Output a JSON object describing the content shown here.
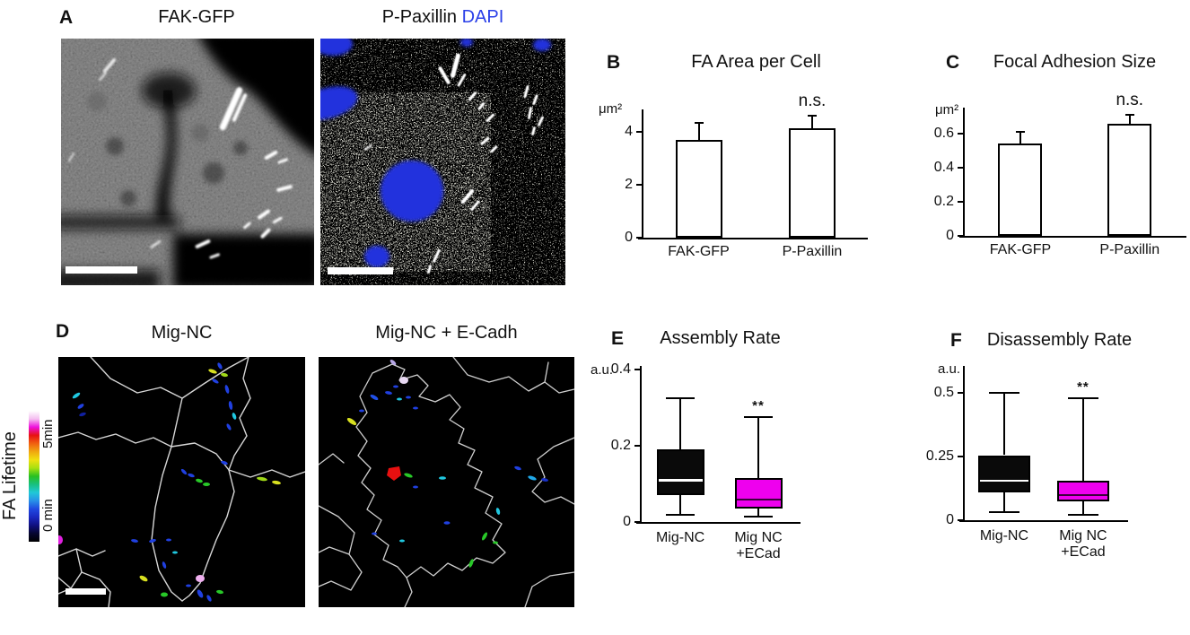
{
  "figure": {
    "background": "#ffffff",
    "dapi_blue": "#2a3fe8",
    "box_magenta": "#ee00ee"
  },
  "panels": {
    "a": {
      "label": "A",
      "image1_title": "FAK-GFP",
      "image2_title_main": "P-Paxillin",
      "image2_title_dapi": "DAPI"
    },
    "d": {
      "label": "D",
      "image1_title": "Mig-NC",
      "image2_title": "Mig-NC + E-Cadh",
      "colorbar": {
        "axis_label": "FA Lifetime",
        "top_label": "5min",
        "bottom_label": "0 min",
        "gradient": [
          "#ffffff",
          "#f4bdf0",
          "#ee10dd",
          "#e81212",
          "#f06010",
          "#f0a810",
          "#f0e010",
          "#a8e010",
          "#28c020",
          "#18c080",
          "#20c8d8",
          "#2890e8",
          "#2048e0",
          "#1a28c0",
          "#101080",
          "#060630",
          "#000000"
        ]
      }
    }
  },
  "chart_data": [
    {
      "id": "B",
      "panel_label": "B",
      "type": "bar",
      "title": "FA Area per Cell",
      "ylabel": "μm²",
      "ylim": [
        0,
        4.85
      ],
      "yticks": [
        {
          "value": 0,
          "label": "0"
        },
        {
          "value": 2,
          "label": "2"
        },
        {
          "value": 4,
          "label": "4"
        }
      ],
      "categories": [
        "FAK-GFP",
        "P-Paxillin"
      ],
      "values": [
        3.7,
        4.15
      ],
      "errors": [
        0.65,
        0.45
      ],
      "bar_fill": "#ffffff",
      "bar_border": "#000000",
      "annotations": [
        {
          "text": "n.s.",
          "category": 1
        }
      ]
    },
    {
      "id": "C",
      "panel_label": "C",
      "type": "bar",
      "title": "Focal Adhesion Size",
      "ylabel": "μm²",
      "ylim": [
        0,
        0.75
      ],
      "yticks": [
        {
          "value": 0,
          "label": "0"
        },
        {
          "value": 0.2,
          "label": "0.2"
        },
        {
          "value": 0.4,
          "label": "0.4"
        },
        {
          "value": 0.6,
          "label": "0.6"
        }
      ],
      "categories": [
        "FAK-GFP",
        "P-Paxillin"
      ],
      "values": [
        0.54,
        0.655
      ],
      "errors": [
        0.07,
        0.055
      ],
      "bar_fill": "#ffffff",
      "bar_border": "#000000",
      "annotations": [
        {
          "text": "n.s.",
          "category": 1
        }
      ]
    },
    {
      "id": "E",
      "panel_label": "E",
      "type": "box",
      "title": "Assembly Rate",
      "ylabel": "a.u.",
      "ylim": [
        0,
        0.41
      ],
      "yticks": [
        {
          "value": 0,
          "label": "0"
        },
        {
          "value": 0.2,
          "label": "0.2"
        },
        {
          "value": 0.4,
          "label": "0.4"
        }
      ],
      "categories": [
        "Mig-NC",
        "Mig NC\n+ECad"
      ],
      "boxes": [
        {
          "whisker_low": 0.02,
          "q1": 0.07,
          "median": 0.11,
          "q3": 0.19,
          "whisker_high": 0.325,
          "fill": "#0a0a0a",
          "median_color": "#ffffff"
        },
        {
          "whisker_low": 0.015,
          "q1": 0.035,
          "median": 0.06,
          "q3": 0.115,
          "whisker_high": 0.275,
          "fill": "#ee00ee",
          "median_color": "#3a003a"
        }
      ],
      "annotations": [
        {
          "text": "**",
          "category": 1
        }
      ]
    },
    {
      "id": "F",
      "panel_label": "F",
      "type": "box",
      "title": "Disassembly Rate",
      "ylabel": "a.u.",
      "ylim": [
        0,
        0.605
      ],
      "yticks": [
        {
          "value": 0,
          "label": "0"
        },
        {
          "value": 0.25,
          "label": "0.25"
        },
        {
          "value": 0.5,
          "label": "0.5"
        }
      ],
      "categories": [
        "Mig-NC",
        "Mig NC\n+ECad"
      ],
      "boxes": [
        {
          "whisker_low": 0.03,
          "q1": 0.11,
          "median": 0.155,
          "q3": 0.255,
          "whisker_high": 0.5,
          "fill": "#0a0a0a",
          "median_color": "#ffffff"
        },
        {
          "whisker_low": 0.02,
          "q1": 0.075,
          "median": 0.1,
          "q3": 0.155,
          "whisker_high": 0.48,
          "fill": "#ee00ee",
          "median_color": "#3a003a"
        }
      ],
      "annotations": [
        {
          "text": "**",
          "category": 1
        }
      ]
    }
  ]
}
